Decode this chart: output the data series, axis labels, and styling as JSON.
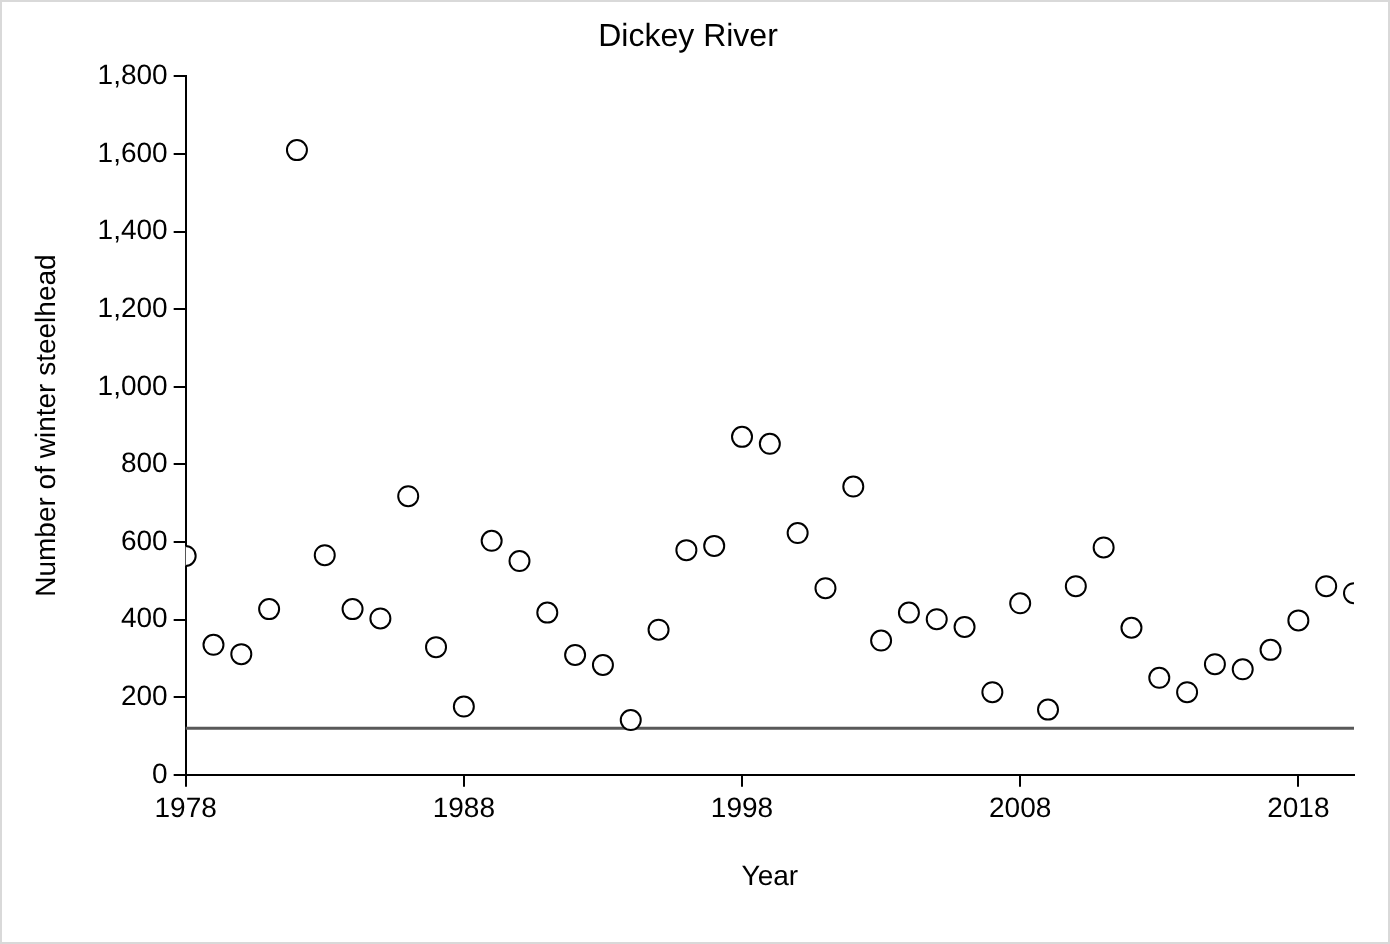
{
  "chart_data": {
    "type": "scatter",
    "title": "Dickey River",
    "xlabel": "Year",
    "ylabel": "Number of winter steelhead",
    "x": [
      1978,
      1979,
      1980,
      1981,
      1982,
      1983,
      1984,
      1985,
      1986,
      1987,
      1988,
      1989,
      1990,
      1991,
      1992,
      1993,
      1994,
      1995,
      1996,
      1997,
      1998,
      1999,
      2000,
      2001,
      2002,
      2003,
      2004,
      2005,
      2006,
      2007,
      2008,
      2009,
      2010,
      2011,
      2012,
      2013,
      2014,
      2015,
      2016,
      2017,
      2018,
      2019,
      2020
    ],
    "series": [
      {
        "color": "#000000",
        "values": [
          564,
          335,
          311,
          427,
          1610,
          566,
          427,
          403,
          718,
          329,
          176,
          603,
          551,
          418,
          309,
          283,
          141,
          374,
          579,
          590,
          871,
          853,
          623,
          481,
          743,
          346,
          418,
          401,
          381,
          213,
          442,
          168,
          486,
          586,
          379,
          250,
          213,
          285,
          272,
          322,
          398,
          486,
          468
        ]
      }
    ],
    "xlim": [
      1978,
      2020
    ],
    "xticks": [
      1978,
      1988,
      1998,
      2008,
      2018
    ],
    "ylim": [
      0,
      1800
    ],
    "yticks": [
      0,
      {
        "value": 200,
        "label": "200"
      },
      {
        "value": 400,
        "label": "400"
      },
      {
        "value": 600,
        "label": "600"
      },
      {
        "value": 800,
        "label": "800"
      },
      {
        "value": 1000,
        "label": "1,000"
      },
      {
        "value": 1200,
        "label": "1,200"
      },
      {
        "value": 1400,
        "label": "1,400"
      },
      {
        "value": 1600,
        "label": "1,600"
      },
      {
        "value": 1800,
        "label": "1,800"
      }
    ],
    "ref_lines": [
      {
        "axis": "y",
        "value": 120,
        "color": "#595959"
      }
    ],
    "grid": false,
    "legend": false,
    "marker": "circle"
  }
}
